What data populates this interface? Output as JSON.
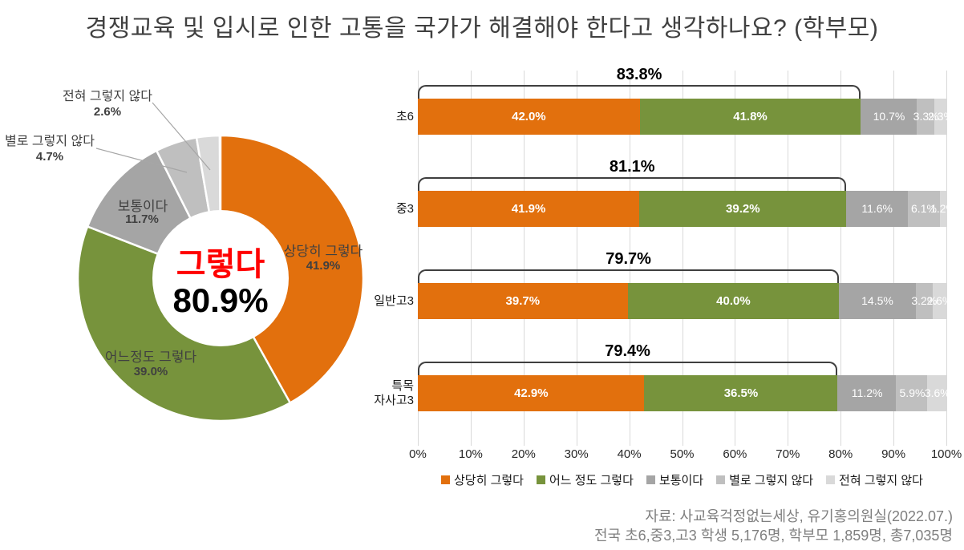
{
  "title": "경쟁교육 및 입시로 인한 고통을 국가가 해결해야 한다고 생각하나요? (학부모)",
  "source": {
    "line1": "자료: 사교육걱정없는세상, 유기홍의원실(2022.07.)",
    "line2": "전국 초6,중3,고3 학생 5,176명, 학부모 1,859명, 총7,035명"
  },
  "colors": {
    "strongly_agree": "#E2700D",
    "somewhat_agree": "#77933C",
    "neutral": "#A5A5A5",
    "somewhat_disagree": "#BFBFBF",
    "strongly_disagree": "#D9D9D9",
    "bracket": "#3F3F3F",
    "center_highlight": "#FF0000"
  },
  "chart_data": [
    {
      "type": "pie",
      "subtype": "donut",
      "start_angle_deg": 0,
      "direction": "clockwise",
      "center": {
        "label": "그렇다",
        "value_label": "80.9%"
      },
      "slices": [
        {
          "label": "상당히 그렇다",
          "value": 41.9,
          "value_label": "41.9%",
          "color": "#E2700D"
        },
        {
          "label": "어느정도 그렇다",
          "value": 39.0,
          "value_label": "39.0%",
          "color": "#77933C"
        },
        {
          "label": "보통이다",
          "value": 11.7,
          "value_label": "11.7%",
          "color": "#A5A5A5"
        },
        {
          "label": "별로 그렇지 않다",
          "value": 4.7,
          "value_label": "4.7%",
          "color": "#BFBFBF"
        },
        {
          "label": "전혀 그렇지 않다",
          "value": 2.6,
          "value_label": "2.6%",
          "color": "#D9D9D9"
        }
      ]
    },
    {
      "type": "bar",
      "orientation": "horizontal",
      "stacked": true,
      "grid": true,
      "xlim": [
        0,
        100
      ],
      "x_ticks": [
        "0%",
        "10%",
        "20%",
        "30%",
        "40%",
        "50%",
        "60%",
        "70%",
        "80%",
        "90%",
        "100%"
      ],
      "categories": [
        "초6",
        "중3",
        "일반고3",
        "특목 자사고3"
      ],
      "category_lines": [
        [
          "초6"
        ],
        [
          "중3"
        ],
        [
          "일반고3"
        ],
        [
          "특목",
          "자사고3"
        ]
      ],
      "series": [
        {
          "name": "상당히 그렇다",
          "color": "#E2700D",
          "values": [
            42.0,
            41.9,
            39.7,
            42.9
          ]
        },
        {
          "name": "어느 정도 그렇다",
          "color": "#77933C",
          "values": [
            41.8,
            39.2,
            40.0,
            36.5
          ]
        },
        {
          "name": "보통이다",
          "color": "#A5A5A5",
          "values": [
            10.7,
            11.6,
            14.5,
            11.2
          ]
        },
        {
          "name": "별로 그렇지 않다",
          "color": "#BFBFBF",
          "values": [
            3.3,
            6.1,
            3.2,
            5.9
          ]
        },
        {
          "name": "전혀 그렇지 않다",
          "color": "#D9D9D9",
          "values": [
            2.3,
            1.2,
            2.6,
            3.6
          ]
        }
      ],
      "bracket_totals": [
        {
          "label": "83.8%",
          "value": 83.8
        },
        {
          "label": "81.1%",
          "value": 81.1
        },
        {
          "label": "79.7%",
          "value": 79.7
        },
        {
          "label": "79.4%",
          "value": 79.4
        }
      ],
      "legend": [
        "상당히 그렇다",
        "어느 정도 그렇다",
        "보통이다",
        "별로 그렇지 않다",
        "전혀 그렇지 않다"
      ],
      "legend_position": "bottom"
    }
  ]
}
